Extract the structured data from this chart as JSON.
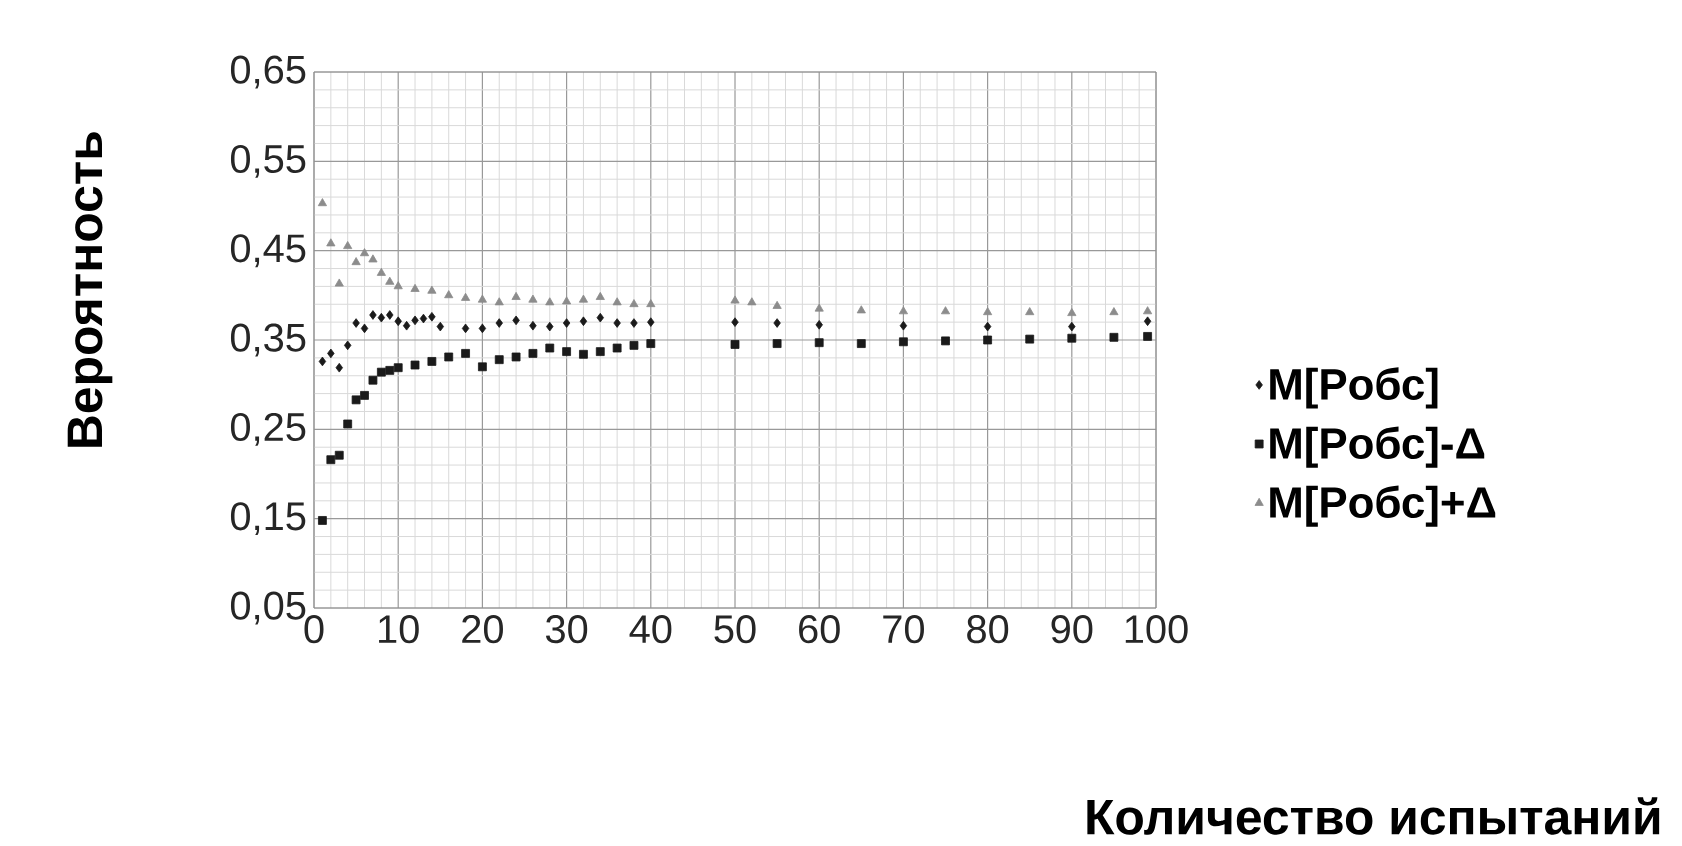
{
  "chart_data": {
    "type": "scatter",
    "xlabel": "Количество испытаний",
    "ylabel": "Вероятность",
    "xlim": [
      0,
      100
    ],
    "xticks": [
      0,
      10,
      20,
      30,
      40,
      50,
      60,
      70,
      80,
      90,
      100
    ],
    "ylim": [
      0.05,
      0.65
    ],
    "yticks": [
      {
        "value": 0.05,
        "label": "0,05"
      },
      {
        "value": 0.15,
        "label": "0,15"
      },
      {
        "value": 0.25,
        "label": "0,25"
      },
      {
        "value": 0.35,
        "label": "0,35"
      },
      {
        "value": 0.45,
        "label": "0,45"
      },
      {
        "value": 0.55,
        "label": "0,55"
      },
      {
        "value": 0.65,
        "label": "0,65"
      }
    ],
    "grid": true,
    "legend": "right",
    "series": [
      {
        "name": "M[Pобс]",
        "color": "#1a1a1a",
        "marker": "diamond",
        "x": [
          1,
          2,
          3,
          4,
          5,
          6,
          7,
          8,
          9,
          10,
          11,
          12,
          13,
          14,
          15,
          18,
          20,
          22,
          24,
          26,
          28,
          30,
          32,
          34,
          36,
          38,
          40,
          50,
          55,
          60,
          70,
          80,
          90,
          99
        ],
        "values": [
          0.326,
          0.335,
          0.319,
          0.344,
          0.369,
          0.363,
          0.378,
          0.375,
          0.378,
          0.371,
          0.366,
          0.372,
          0.374,
          0.376,
          0.365,
          0.363,
          0.363,
          0.369,
          0.372,
          0.366,
          0.365,
          0.369,
          0.371,
          0.375,
          0.369,
          0.369,
          0.37,
          0.37,
          0.369,
          0.367,
          0.366,
          0.365,
          0.365,
          0.371
        ]
      },
      {
        "name": "M[Pобс]-Δ",
        "color": "#1a1a1a",
        "marker": "square",
        "x": [
          1,
          2,
          3,
          4,
          5,
          6,
          7,
          8,
          9,
          10,
          12,
          14,
          16,
          18,
          20,
          22,
          24,
          26,
          28,
          30,
          32,
          34,
          36,
          38,
          40,
          50,
          55,
          60,
          65,
          70,
          75,
          80,
          85,
          90,
          95,
          99
        ],
        "values": [
          0.148,
          0.216,
          0.221,
          0.256,
          0.283,
          0.288,
          0.305,
          0.314,
          0.316,
          0.319,
          0.322,
          0.326,
          0.331,
          0.335,
          0.32,
          0.328,
          0.331,
          0.335,
          0.341,
          0.337,
          0.334,
          0.337,
          0.341,
          0.344,
          0.346,
          0.345,
          0.346,
          0.347,
          0.346,
          0.348,
          0.349,
          0.35,
          0.351,
          0.352,
          0.353,
          0.354
        ]
      },
      {
        "name": "M[Pобс]+Δ",
        "color": "#8c8c8c",
        "marker": "triangle",
        "x": [
          1,
          2,
          3,
          4,
          5,
          6,
          7,
          8,
          9,
          10,
          12,
          14,
          16,
          18,
          20,
          22,
          24,
          26,
          28,
          30,
          32,
          34,
          36,
          38,
          40,
          50,
          52,
          55,
          60,
          65,
          70,
          75,
          80,
          85,
          90,
          95,
          99
        ],
        "values": [
          0.503,
          0.458,
          0.413,
          0.455,
          0.437,
          0.447,
          0.44,
          0.425,
          0.415,
          0.41,
          0.407,
          0.405,
          0.4,
          0.397,
          0.395,
          0.392,
          0.398,
          0.395,
          0.392,
          0.393,
          0.395,
          0.398,
          0.392,
          0.39,
          0.39,
          0.394,
          0.392,
          0.388,
          0.385,
          0.383,
          0.382,
          0.382,
          0.381,
          0.381,
          0.38,
          0.381,
          0.382
        ]
      }
    ]
  }
}
